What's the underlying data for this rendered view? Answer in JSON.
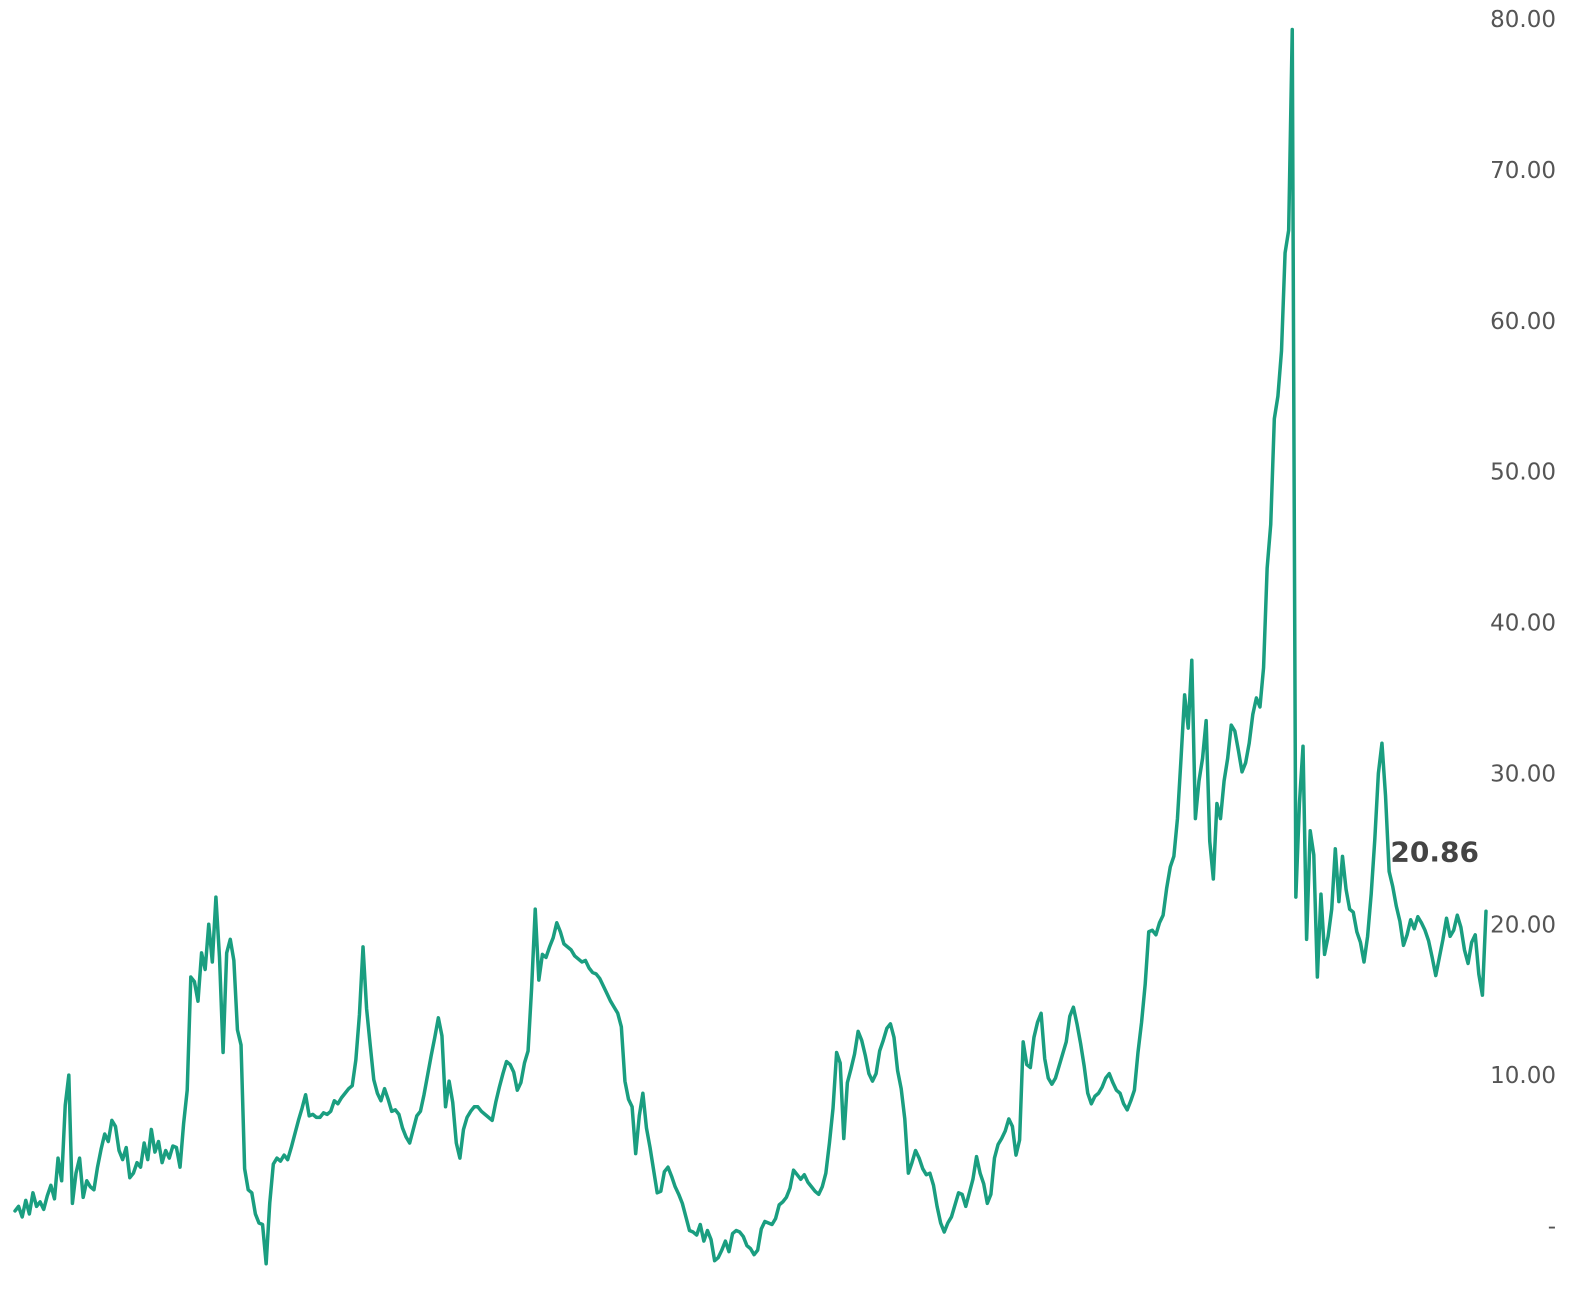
{
  "chart_data": {
    "type": "line",
    "line_color": "#1a9e80",
    "text_color": "#555555",
    "ylim": [
      0,
      80
    ],
    "y_ticks": [
      {
        "value": 80,
        "label": "80.00"
      },
      {
        "value": 70,
        "label": "70.00"
      },
      {
        "value": 60,
        "label": "60.00"
      },
      {
        "value": 50,
        "label": "50.00"
      },
      {
        "value": 40,
        "label": "40.00"
      },
      {
        "value": 30,
        "label": "30.00"
      },
      {
        "value": 20,
        "label": "20.00"
      },
      {
        "value": 10,
        "label": "10.00"
      },
      {
        "value": 0,
        "label": "-"
      }
    ],
    "last_value_label": "20.86",
    "grid": false,
    "y_axis_side": "right",
    "series": [
      {
        "values": [
          1.0,
          1.3,
          0.6,
          1.7,
          0.8,
          2.2,
          1.3,
          1.6,
          1.1,
          2.0,
          2.7,
          1.8,
          4.5,
          3.0,
          8.0,
          10.0,
          1.5,
          3.5,
          4.5,
          1.9,
          3.0,
          2.6,
          2.4,
          3.9,
          5.1,
          6.1,
          5.6,
          7.0,
          6.6,
          5.0,
          4.4,
          5.2,
          3.2,
          3.5,
          4.2,
          3.9,
          5.5,
          4.4,
          6.4,
          4.9,
          5.6,
          4.2,
          5.0,
          4.5,
          5.3,
          5.2,
          3.9,
          6.8,
          9.0,
          16.5,
          16.2,
          14.9,
          18.1,
          17.0,
          20.0,
          17.5,
          21.8,
          17.8,
          11.5,
          18.1,
          19.0,
          17.6,
          13.0,
          12.0,
          3.8,
          2.4,
          2.2,
          0.8,
          0.2,
          0.1,
          -2.5,
          1.5,
          4.1,
          4.5,
          4.3,
          4.7,
          4.4,
          5.2,
          6.1,
          7.0,
          7.8,
          8.7,
          7.3,
          7.4,
          7.2,
          7.2,
          7.5,
          7.4,
          7.6,
          8.3,
          8.1,
          8.5,
          8.8,
          9.1,
          9.3,
          11.0,
          14.0,
          18.5,
          14.4,
          12.0,
          9.7,
          8.8,
          8.3,
          9.1,
          8.4,
          7.6,
          7.7,
          7.4,
          6.5,
          5.9,
          5.5,
          6.4,
          7.3,
          7.6,
          8.7,
          10.0,
          11.3,
          12.5,
          13.8,
          12.6,
          7.9,
          9.6,
          8.2,
          5.5,
          4.5,
          6.4,
          7.2,
          7.6,
          7.9,
          7.9,
          7.6,
          7.4,
          7.2,
          7.0,
          8.2,
          9.2,
          10.1,
          10.9,
          10.7,
          10.2,
          9.0,
          9.5,
          10.8,
          11.6,
          15.8,
          21.0,
          16.3,
          18.0,
          17.8,
          18.5,
          19.1,
          20.1,
          19.5,
          18.7,
          18.5,
          18.3,
          17.9,
          17.7,
          17.5,
          17.6,
          17.1,
          16.8,
          16.7,
          16.4,
          15.9,
          15.4,
          14.9,
          14.5,
          14.1,
          13.2,
          9.6,
          8.4,
          7.9,
          4.8,
          7.3,
          8.8,
          6.5,
          5.2,
          3.7,
          2.2,
          2.3,
          3.6,
          3.9,
          3.3,
          2.6,
          2.1,
          1.5,
          0.6,
          -0.3,
          -0.4,
          -0.6,
          0.1,
          -1.0,
          -0.3,
          -0.9,
          -2.3,
          -2.1,
          -1.6,
          -1.0,
          -1.7,
          -0.5,
          -0.3,
          -0.4,
          -0.7,
          -1.3,
          -1.5,
          -1.9,
          -1.6,
          -0.2,
          0.3,
          0.2,
          0.1,
          0.5,
          1.4,
          1.6,
          1.9,
          2.5,
          3.7,
          3.4,
          3.1,
          3.4,
          2.9,
          2.6,
          2.3,
          2.1,
          2.6,
          3.5,
          5.5,
          7.8,
          11.5,
          10.8,
          5.8,
          9.5,
          10.4,
          11.4,
          12.9,
          12.3,
          11.3,
          10.1,
          9.6,
          10.1,
          11.6,
          12.3,
          13.1,
          13.4,
          12.5,
          10.3,
          9.1,
          7.1,
          3.5,
          4.2,
          5.0,
          4.5,
          3.8,
          3.4,
          3.5,
          2.7,
          1.3,
          0.2,
          -0.4,
          0.2,
          0.6,
          1.4,
          2.2,
          2.1,
          1.3,
          2.2,
          3.1,
          4.6,
          3.5,
          2.8,
          1.5,
          2.1,
          4.5,
          5.4,
          5.8,
          6.3,
          7.1,
          6.6,
          4.7,
          5.7,
          12.2,
          10.7,
          10.5,
          12.5,
          13.5,
          14.1,
          11.1,
          9.8,
          9.4,
          9.8,
          10.6,
          11.4,
          12.2,
          13.9,
          14.5,
          13.4,
          12.1,
          10.6,
          8.8,
          8.1,
          8.6,
          8.8,
          9.2,
          9.8,
          10.1,
          9.5,
          9.0,
          8.8,
          8.1,
          7.7,
          8.3,
          9.0,
          11.5,
          13.5,
          16.0,
          19.5,
          19.6,
          19.3,
          20.1,
          20.6,
          22.4,
          23.8,
          24.5,
          27.0,
          31.0,
          35.2,
          33.0,
          37.5,
          27.0,
          29.5,
          31.0,
          33.5,
          25.5,
          23.0,
          28.0,
          27.0,
          29.5,
          31.0,
          33.2,
          32.8,
          31.5,
          30.1,
          30.7,
          32.0,
          33.9,
          35.0,
          34.4,
          37.0,
          43.6,
          46.5,
          53.5,
          55.0,
          58.0,
          64.5,
          66.0,
          79.3,
          21.8,
          28.0,
          31.8,
          19.0,
          26.2,
          24.6,
          16.5,
          22.0,
          18.0,
          19.2,
          21.0,
          25.0,
          21.5,
          24.5,
          22.3,
          21.0,
          20.8,
          19.5,
          18.8,
          17.5,
          19.2,
          22.0,
          25.6,
          30.0,
          32.0,
          28.5,
          23.5,
          22.5,
          21.2,
          20.2,
          18.6,
          19.3,
          20.3,
          19.7,
          20.5,
          20.1,
          19.6,
          18.9,
          17.8,
          16.6,
          17.8,
          19.0,
          20.4,
          19.2,
          19.6,
          20.6,
          19.8,
          18.3,
          17.4,
          18.8,
          19.3,
          16.7,
          15.3,
          20.86
        ]
      }
    ]
  }
}
